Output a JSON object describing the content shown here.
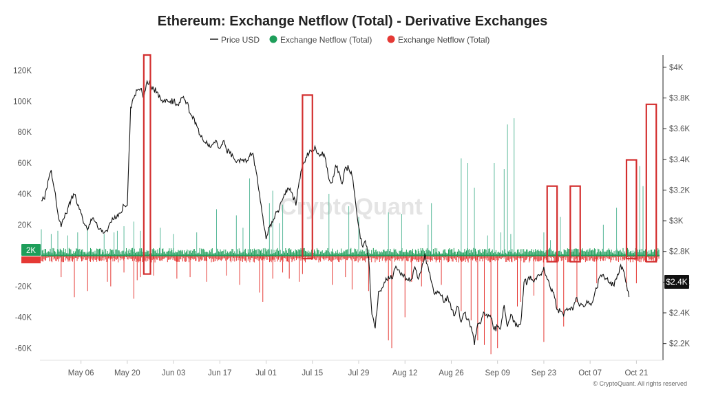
{
  "chart_data": {
    "type": "line+bar",
    "title": "Ethereum: Exchange Netflow (Total) - Derivative Exchanges",
    "legend": [
      {
        "label": "Price USD",
        "color": "#222222",
        "symbol": "line"
      },
      {
        "label": "Exchange Netflow (Total)",
        "color": "#1e9e5a",
        "symbol": "dot"
      },
      {
        "label": "Exchange Netflow (Total)",
        "color": "#e53935",
        "symbol": "dot"
      }
    ],
    "legend_position": "top-center",
    "left_axis": {
      "ticks": [
        120000,
        100000,
        80000,
        60000,
        40000,
        20000,
        0,
        -20000,
        -40000,
        -60000
      ],
      "labels": [
        "120K",
        "100K",
        "80K",
        "60K",
        "40K",
        "20K",
        "",
        "-20K",
        "-40K",
        "-60K"
      ],
      "range": [
        -67000,
        130000
      ]
    },
    "right_axis": {
      "ticks": [
        4000,
        3800,
        3600,
        3400,
        3200,
        3000,
        2800,
        2600,
        2400,
        2200
      ],
      "labels": [
        "$4K",
        "$3.8K",
        "$3.6K",
        "$3.4K",
        "$3.2K",
        "$3K",
        "$2.8K",
        "$2.6K",
        "$2.4K",
        "$2.2K"
      ],
      "range": [
        2100,
        4080
      ]
    },
    "x_labels": [
      "May 06",
      "May 20",
      "Jun 03",
      "Jun 17",
      "Jul 01",
      "Jul 15",
      "Jul 29",
      "Aug 12",
      "Aug 26",
      "Sep 09",
      "Sep 23",
      "Oct 07",
      "Oct 21"
    ],
    "x_label_days": [
      6,
      20,
      34,
      48,
      62,
      76,
      90,
      104,
      118,
      132,
      146,
      160,
      174
    ],
    "x_range_days": [
      -6,
      181
    ],
    "current_netflow_label": "2K",
    "current_price_label": "$2.4K",
    "price_series": {
      "day": [
        -6,
        -5,
        -4,
        -3,
        -2,
        -1,
        0,
        1,
        2,
        3,
        4,
        5,
        6,
        7,
        8,
        9,
        10,
        11,
        12,
        13,
        14,
        15,
        16,
        17,
        18,
        19,
        20,
        21,
        22,
        23,
        24,
        25,
        26,
        27,
        28,
        29,
        30,
        31,
        32,
        33,
        34,
        35,
        36,
        37,
        38,
        39,
        40,
        41,
        42,
        43,
        44,
        45,
        46,
        47,
        48,
        49,
        50,
        51,
        52,
        53,
        54,
        55,
        56,
        57,
        58,
        59,
        60,
        61,
        62,
        63,
        64,
        65,
        66,
        67,
        68,
        69,
        70,
        71,
        72,
        73,
        74,
        75,
        76,
        77,
        78,
        79,
        80,
        81,
        82,
        83,
        84,
        85,
        86,
        87,
        88,
        89,
        90,
        91,
        92,
        93,
        94,
        95,
        96,
        97,
        98,
        99,
        100,
        101,
        102,
        103,
        104,
        105,
        106,
        107,
        108,
        109,
        110,
        111,
        112,
        113,
        114,
        115,
        116,
        117,
        118,
        119,
        120,
        121,
        122,
        123,
        124,
        125,
        126,
        127,
        128,
        129,
        130,
        131,
        132,
        133,
        134,
        135,
        136,
        137,
        138,
        139,
        140,
        141,
        142,
        143,
        144,
        145,
        146,
        147,
        148,
        149,
        150,
        151,
        152,
        153,
        154,
        155,
        156,
        157,
        158,
        159,
        160,
        161,
        162,
        163,
        164,
        165,
        166,
        167,
        168,
        169,
        170,
        171,
        172,
        173,
        174,
        175,
        176,
        177,
        178
      ],
      "price": [
        3130,
        3140,
        3260,
        3330,
        3200,
        3050,
        2960,
        3020,
        3080,
        3140,
        3170,
        3100,
        3050,
        2980,
        2940,
        3010,
        3000,
        2960,
        2950,
        2920,
        2930,
        2990,
        3010,
        3040,
        3050,
        3100,
        3100,
        3740,
        3800,
        3850,
        3860,
        3800,
        3910,
        3890,
        3860,
        3840,
        3800,
        3780,
        3790,
        3780,
        3780,
        3760,
        3770,
        3810,
        3770,
        3700,
        3680,
        3620,
        3560,
        3520,
        3520,
        3480,
        3500,
        3520,
        3470,
        3520,
        3460,
        3440,
        3420,
        3380,
        3380,
        3400,
        3380,
        3420,
        3440,
        3320,
        3180,
        3030,
        2880,
        2960,
        2990,
        3060,
        3080,
        3140,
        3200,
        3200,
        3170,
        3100,
        3260,
        3360,
        3410,
        3440,
        3470,
        3470,
        3430,
        3450,
        3400,
        3270,
        3250,
        3360,
        3320,
        3240,
        3350,
        3340,
        3290,
        3130,
        2960,
        2840,
        2870,
        2760,
        2390,
        2300,
        2540,
        2560,
        2600,
        2640,
        2620,
        2690,
        2680,
        2660,
        2640,
        2610,
        2620,
        2700,
        2620,
        2680,
        2780,
        2700,
        2600,
        2520,
        2530,
        2510,
        2470,
        2500,
        2420,
        2380,
        2440,
        2340,
        2400,
        2360,
        2310,
        2190,
        2330,
        2340,
        2400,
        2370,
        2370,
        2290,
        2310,
        2310,
        2450,
        2310,
        2390,
        2350,
        2310,
        2330,
        2600,
        2600,
        2640,
        2600,
        2640,
        2650,
        2700,
        2620,
        2560,
        2530,
        2420,
        2410,
        2380,
        2430,
        2420,
        2440,
        2500,
        2450,
        2440,
        2480,
        2460,
        2490,
        2560,
        2640,
        2650,
        2620,
        2590,
        2580,
        2620,
        2700,
        2680,
        2590,
        2480
      ]
    },
    "netflow_positive": {
      "day": [
        -6,
        -3,
        -1,
        2,
        5,
        8,
        13,
        16,
        17,
        19,
        22,
        24,
        27,
        30,
        34,
        41,
        47,
        53,
        55,
        57,
        63,
        64,
        66,
        67,
        76,
        81,
        87,
        90,
        99,
        103,
        111,
        112,
        121,
        123,
        125,
        129,
        131,
        133,
        134,
        135,
        136,
        137,
        146,
        148,
        151,
        164,
        168,
        175,
        176
      ],
      "value": [
        17000,
        14000,
        16000,
        13000,
        15000,
        18000,
        14000,
        15000,
        16000,
        19000,
        22000,
        16000,
        17000,
        18000,
        14000,
        15000,
        30000,
        26000,
        18000,
        50000,
        34000,
        42000,
        21000,
        33000,
        22000,
        40000,
        32000,
        25000,
        28000,
        27000,
        20000,
        34000,
        63000,
        60000,
        44000,
        13000,
        60000,
        15000,
        56000,
        85000,
        14000,
        89000,
        15000,
        10000,
        25000,
        20000,
        31000,
        58000,
        45000
      ]
    },
    "netflow_negative": {
      "day": [
        0,
        4,
        8,
        14,
        15,
        19,
        22,
        23,
        24,
        28,
        35,
        39,
        44,
        50,
        54,
        60,
        61,
        64,
        67,
        69,
        72,
        73,
        82,
        86,
        88,
        93,
        99,
        100,
        104,
        106,
        109,
        115,
        121,
        124,
        126,
        128,
        130,
        132,
        138,
        139,
        143,
        146,
        150,
        152,
        156,
        162,
        171,
        174
      ],
      "value": [
        -14000,
        -27000,
        -23000,
        -17000,
        -20000,
        -11000,
        -28000,
        -16000,
        -14000,
        -13000,
        -15000,
        -14000,
        -17000,
        -13000,
        -19000,
        -24000,
        -30000,
        -15000,
        -11000,
        -15000,
        -17000,
        -12000,
        -19000,
        -14000,
        -22000,
        -23000,
        -55000,
        -60000,
        -40000,
        -17000,
        -20000,
        -19000,
        -36000,
        -42000,
        -55000,
        -58000,
        -64000,
        -60000,
        -33000,
        -30000,
        -26000,
        -56000,
        -35000,
        -46000,
        -30000,
        -18000,
        -20000,
        -18000
      ]
    },
    "highlight_boxes": [
      {
        "day_start": 25,
        "day_end": 27,
        "top": 130000,
        "bottom": -12000
      },
      {
        "day_start": 73,
        "day_end": 76,
        "top": 104000,
        "bottom": -2000
      },
      {
        "day_start": 147,
        "day_end": 150,
        "top": 45000,
        "bottom": -4000
      },
      {
        "day_start": 154,
        "day_end": 157,
        "top": 45000,
        "bottom": -4000
      },
      {
        "day_start": 171,
        "day_end": 174,
        "top": 62000,
        "bottom": -2000
      },
      {
        "day_start": 177,
        "day_end": 180,
        "top": 98000,
        "bottom": -4000
      }
    ],
    "watermark": "CryptoQuant",
    "copyright": "© CryptoQuant. All rights reserved"
  }
}
